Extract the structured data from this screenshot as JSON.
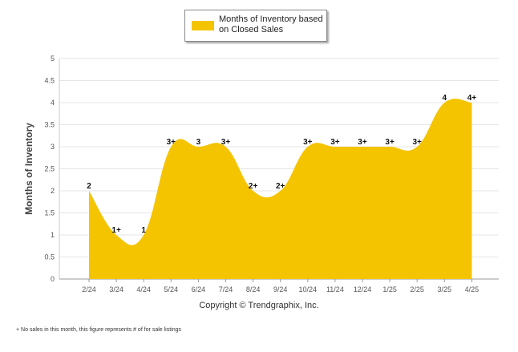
{
  "chart_data": {
    "type": "area",
    "categories": [
      "2/24",
      "3/24",
      "4/24",
      "5/24",
      "6/24",
      "7/24",
      "8/24",
      "9/24",
      "10/24",
      "11/24",
      "12/24",
      "1/25",
      "2/25",
      "3/25",
      "4/25"
    ],
    "series": [
      {
        "name": "Months of Inventory based on Closed Sales",
        "values": [
          2,
          1,
          1,
          3,
          3,
          3,
          2,
          2,
          3,
          3,
          3,
          3,
          3,
          4,
          4
        ],
        "labels": [
          "2",
          "1+",
          "1",
          "3+",
          "3",
          "3+",
          "2+",
          "2+",
          "3+",
          "3+",
          "3+",
          "3+",
          "3+",
          "4",
          "4+"
        ]
      }
    ],
    "ylabel": "Months of Inventory",
    "xlabel": "",
    "ylim": [
      0,
      5
    ],
    "yticks": [
      "0",
      "0.5",
      "1",
      "1.5",
      "2",
      "2.5",
      "3",
      "3.5",
      "4",
      "4.5",
      "5"
    ],
    "grid": true,
    "legend_position": "top",
    "color": "#F5C400"
  },
  "legend": {
    "label": "Months of Inventory based on Closed Sales"
  },
  "copyright": "Copyright © Trendgraphix, Inc.",
  "footnote": "+  No sales in this month, this figure represents # of for sale listings"
}
